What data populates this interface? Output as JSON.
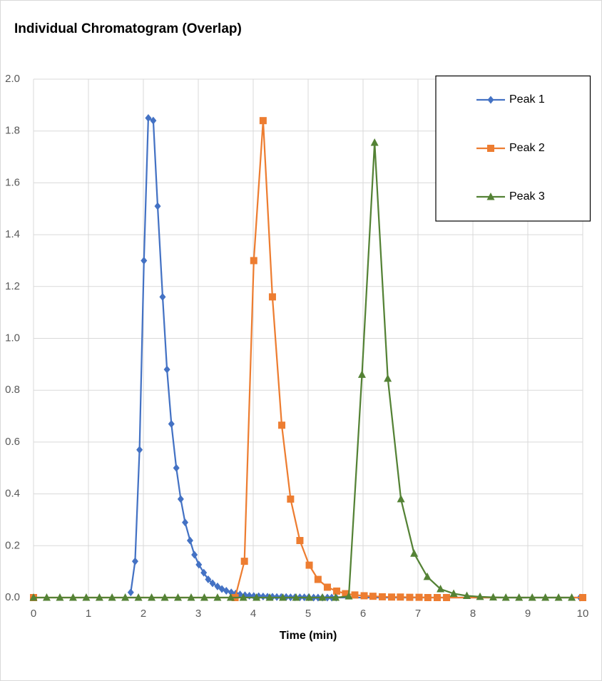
{
  "chart_data": {
    "type": "line",
    "title": "Individual Chromatogram (Overlap)",
    "x_label": "Time (min)",
    "xlim": [
      0,
      10
    ],
    "xticks": [
      0,
      1,
      2,
      3,
      4,
      5,
      6,
      7,
      8,
      9,
      10
    ],
    "ylim": [
      0,
      2
    ],
    "yticks": [
      {
        "value": 0,
        "label": "0.0"
      },
      {
        "value": 0.2,
        "label": "0.2"
      },
      {
        "value": 0.4,
        "label": "0.4"
      },
      {
        "value": 0.6,
        "label": "0.6"
      },
      {
        "value": 0.8,
        "label": "0.8"
      },
      {
        "value": 1,
        "label": "1.0"
      },
      {
        "value": 1.2,
        "label": "1.2"
      },
      {
        "value": 1.4,
        "label": "1.4"
      },
      {
        "value": 1.6,
        "label": "1.6"
      },
      {
        "value": 1.8,
        "label": "1.8"
      },
      {
        "value": 2,
        "label": "2.0"
      }
    ],
    "grid": true,
    "legend": "upper right",
    "series": [
      {
        "name": "Peak 1",
        "color": "#4472c4",
        "marker": "diamond",
        "x": [
          1.77,
          1.85,
          1.93,
          2.01,
          2.09,
          2.18,
          2.26,
          2.35,
          2.43,
          2.51,
          2.6,
          2.68,
          2.76,
          2.85,
          2.93,
          3.01,
          3.1,
          3.18,
          3.26,
          3.35,
          3.43,
          3.51,
          3.6,
          3.68,
          3.76,
          3.85,
          3.93,
          4.01,
          4.1,
          4.18,
          4.26,
          4.35,
          4.43,
          4.51,
          4.6,
          4.68,
          4.76,
          4.85,
          4.93,
          5.01,
          5.1,
          5.18,
          5.26,
          5.35,
          5.43,
          5.51,
          9.95
        ],
        "values": [
          0.02,
          0.14,
          0.57,
          1.3,
          1.85,
          1.84,
          1.51,
          1.16,
          0.88,
          0.67,
          0.5,
          0.38,
          0.29,
          0.22,
          0.165,
          0.127,
          0.096,
          0.07,
          0.055,
          0.043,
          0.033,
          0.026,
          0.02,
          0.015,
          0.012,
          0.009,
          0.007,
          0.006,
          0.005,
          0.004,
          0.003,
          0.003,
          0.002,
          0.002,
          0.002,
          0.001,
          0.001,
          0.001,
          0.001,
          0.001,
          0,
          0,
          0,
          0,
          0,
          0,
          0
        ]
      },
      {
        "name": "Peak 2",
        "color": "#ed7d31",
        "marker": "square",
        "x": [
          0,
          3.67,
          3.84,
          4.01,
          4.18,
          4.35,
          4.52,
          4.68,
          4.85,
          5.02,
          5.18,
          5.35,
          5.52,
          5.68,
          5.85,
          6.02,
          6.18,
          6.35,
          6.52,
          6.68,
          6.85,
          7.02,
          7.18,
          7.35,
          7.52,
          10
        ],
        "values": [
          0,
          0,
          0.14,
          1.3,
          1.84,
          1.16,
          0.665,
          0.38,
          0.22,
          0.125,
          0.07,
          0.04,
          0.025,
          0.015,
          0.01,
          0.007,
          0.005,
          0.003,
          0.002,
          0.002,
          0.001,
          0.001,
          0,
          0,
          0,
          0
        ]
      },
      {
        "name": "Peak 3",
        "color": "#548235",
        "marker": "triangle",
        "x": [
          0,
          0.24,
          0.48,
          0.72,
          0.96,
          1.2,
          1.43,
          1.67,
          1.91,
          2.15,
          2.39,
          2.63,
          2.87,
          3.11,
          3.35,
          3.59,
          3.82,
          4.06,
          4.3,
          4.54,
          4.78,
          5.02,
          5.26,
          5.5,
          5.74,
          5.98,
          6.21,
          6.45,
          6.69,
          6.93,
          7.17,
          7.41,
          7.65,
          7.89,
          8.13,
          8.37,
          8.6,
          8.84,
          9.08,
          9.32,
          9.56,
          9.8
        ],
        "values": [
          0,
          0,
          0,
          0,
          0,
          0,
          0,
          0,
          0,
          0,
          0,
          0,
          0,
          0,
          0,
          0,
          0,
          0,
          0,
          0,
          0,
          0,
          0,
          0,
          0.005,
          0.86,
          1.755,
          0.845,
          0.38,
          0.17,
          0.08,
          0.033,
          0.015,
          0.007,
          0.003,
          0.001,
          0,
          0,
          0,
          0,
          0,
          0
        ]
      }
    ]
  }
}
